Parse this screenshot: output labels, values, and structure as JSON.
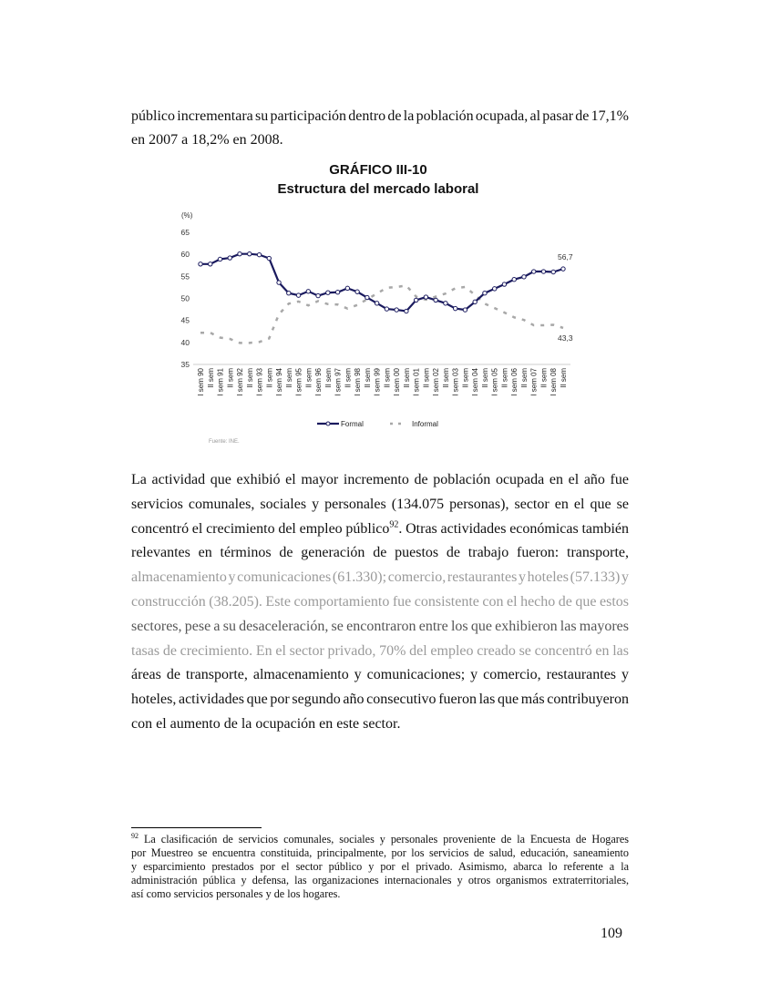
{
  "intro_lines": [
    "público incrementara su participación dentro de la población ocupada, al pasar de 17,1%",
    "en 2007 a 18,2% en 2008."
  ],
  "chart_data": {
    "type": "line",
    "title": "GRÁFICO III-10",
    "subtitle": "Estructura del mercado laboral",
    "ylabel": "(%)",
    "ylim": [
      35,
      65
    ],
    "yticks": [
      35,
      40,
      45,
      50,
      55,
      60,
      65
    ],
    "grid": false,
    "legend_placement": "bottom",
    "categories": [
      "I sem 90",
      "II sem",
      "I sem 91",
      "II sem",
      "I sem 92",
      "II sem",
      "I sem 93",
      "II sem",
      "I sem 94",
      "II sem",
      "I sem 95",
      "II sem",
      "I sem 96",
      "II sem",
      "I sem 97",
      "II sem",
      "I sem 98",
      "II sem",
      "I sem 99",
      "II sem",
      "I sem 00",
      "II sem",
      "I sem 01",
      "II sem",
      "I sem 02",
      "II sem",
      "I sem 03",
      "II sem",
      "I sem 04",
      "II sem",
      "I sem 05",
      "II sem",
      "I sem 06",
      "II sem",
      "I sem 07",
      "II sem",
      "I sem 08",
      "II sem"
    ],
    "series": [
      {
        "name": "Formal",
        "color": "#1a1a5e",
        "style": "solid-markers",
        "values": [
          57.8,
          57.8,
          58.9,
          59.2,
          60.1,
          60.1,
          59.9,
          59.1,
          53.6,
          51.2,
          50.7,
          51.6,
          50.6,
          51.3,
          51.4,
          52.3,
          51.5,
          50.2,
          48.9,
          47.6,
          47.4,
          47.1,
          49.6,
          50.3,
          49.6,
          48.9,
          47.7,
          47.4,
          49.2,
          51.2,
          52.2,
          53.2,
          54.3,
          54.9,
          56.1,
          56.1,
          56.0,
          56.7
        ]
      },
      {
        "name": "Informal",
        "color": "#a8a8a8",
        "style": "dashed",
        "values": [
          42.2,
          42.2,
          41.1,
          40.8,
          39.9,
          39.9,
          40.1,
          40.9,
          46.4,
          48.8,
          49.3,
          48.4,
          49.4,
          48.7,
          48.6,
          47.7,
          48.5,
          49.8,
          51.1,
          52.4,
          52.6,
          52.9,
          50.4,
          49.7,
          50.4,
          51.1,
          52.3,
          52.6,
          50.8,
          48.8,
          47.8,
          46.8,
          45.7,
          45.1,
          43.9,
          43.9,
          44.0,
          43.3
        ]
      }
    ],
    "annotations": [
      "56,7",
      "43,3"
    ],
    "source": "Fuente: INE."
  },
  "body_lines": [
    "La actividad que exhibió el mayor incremento de población ocupada en el año fue",
    "servicios comunales, sociales y personales (134.075 personas), sector en el que se",
    {
      "before": "concentró el crecimiento del empleo público",
      "sup": "92",
      "after": ". Otras actividades económicas también"
    },
    "relevantes en términos de generación de puestos de trabajo fueron: transporte,",
    "almacenamiento y comunicaciones (61.330); comercio, restaurantes y hoteles (57.133) y",
    "construcción (38.205). Este comportamiento fue consistente con el hecho de que estos",
    "sectores, pese a su desaceleración, se encontraron entre los que exhibieron las mayores",
    "tasas de crecimiento. En el sector privado, 70% del empleo creado se concentró en las",
    "áreas de transporte, almacenamiento y comunicaciones; y comercio, restaurantes y",
    "hoteles, actividades que por segundo año consecutivo fueron las que más contribuyeron",
    "con el aumento de la ocupación en este sector."
  ],
  "footnote": {
    "number": "92",
    "lines": [
      "La clasificación de servicios comunales, sociales y personales proveniente de la Encuesta de Hogares",
      "por Muestreo se encuentra constituida, principalmente, por los servicios de salud, educación, saneamiento",
      "y esparcimiento prestados por el sector público y por el privado. Asimismo, abarca lo referente a la",
      "administración pública y defensa, las organizaciones internacionales y otros organismos extraterritoriales,",
      "así como servicios personales y de los hogares."
    ]
  },
  "page_number": "109"
}
